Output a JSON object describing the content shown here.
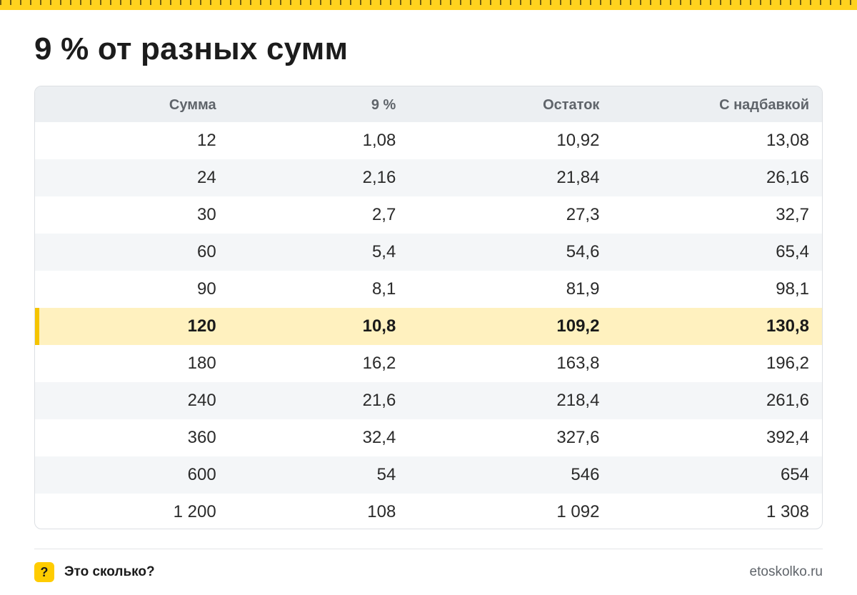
{
  "title": "9 % от разных сумм",
  "table": {
    "headers": [
      "Сумма",
      "9 %",
      "Остаток",
      "С надбавкой"
    ],
    "highlight_row": 5,
    "rows": [
      [
        "12",
        "1,08",
        "10,92",
        "13,08"
      ],
      [
        "24",
        "2,16",
        "21,84",
        "26,16"
      ],
      [
        "30",
        "2,7",
        "27,3",
        "32,7"
      ],
      [
        "60",
        "5,4",
        "54,6",
        "65,4"
      ],
      [
        "90",
        "8,1",
        "81,9",
        "98,1"
      ],
      [
        "120",
        "10,8",
        "109,2",
        "130,8"
      ],
      [
        "180",
        "16,2",
        "163,8",
        "196,2"
      ],
      [
        "240",
        "21,6",
        "218,4",
        "261,6"
      ],
      [
        "360",
        "32,4",
        "327,6",
        "392,4"
      ],
      [
        "600",
        "54",
        "546",
        "654"
      ],
      [
        "1 200",
        "108",
        "1 092",
        "1 308"
      ]
    ]
  },
  "footer": {
    "badge": "?",
    "brand": "Это сколько?",
    "site": "etoskolko.ru"
  },
  "colors": {
    "accent": "#ffcc00",
    "highlight_bg": "#fff1bf",
    "header_bg": "#eceff2",
    "stripe_bg": "#f4f6f8"
  },
  "icons": {
    "ruler": "ruler-stripe-icon",
    "badge": "question-badge-icon"
  }
}
